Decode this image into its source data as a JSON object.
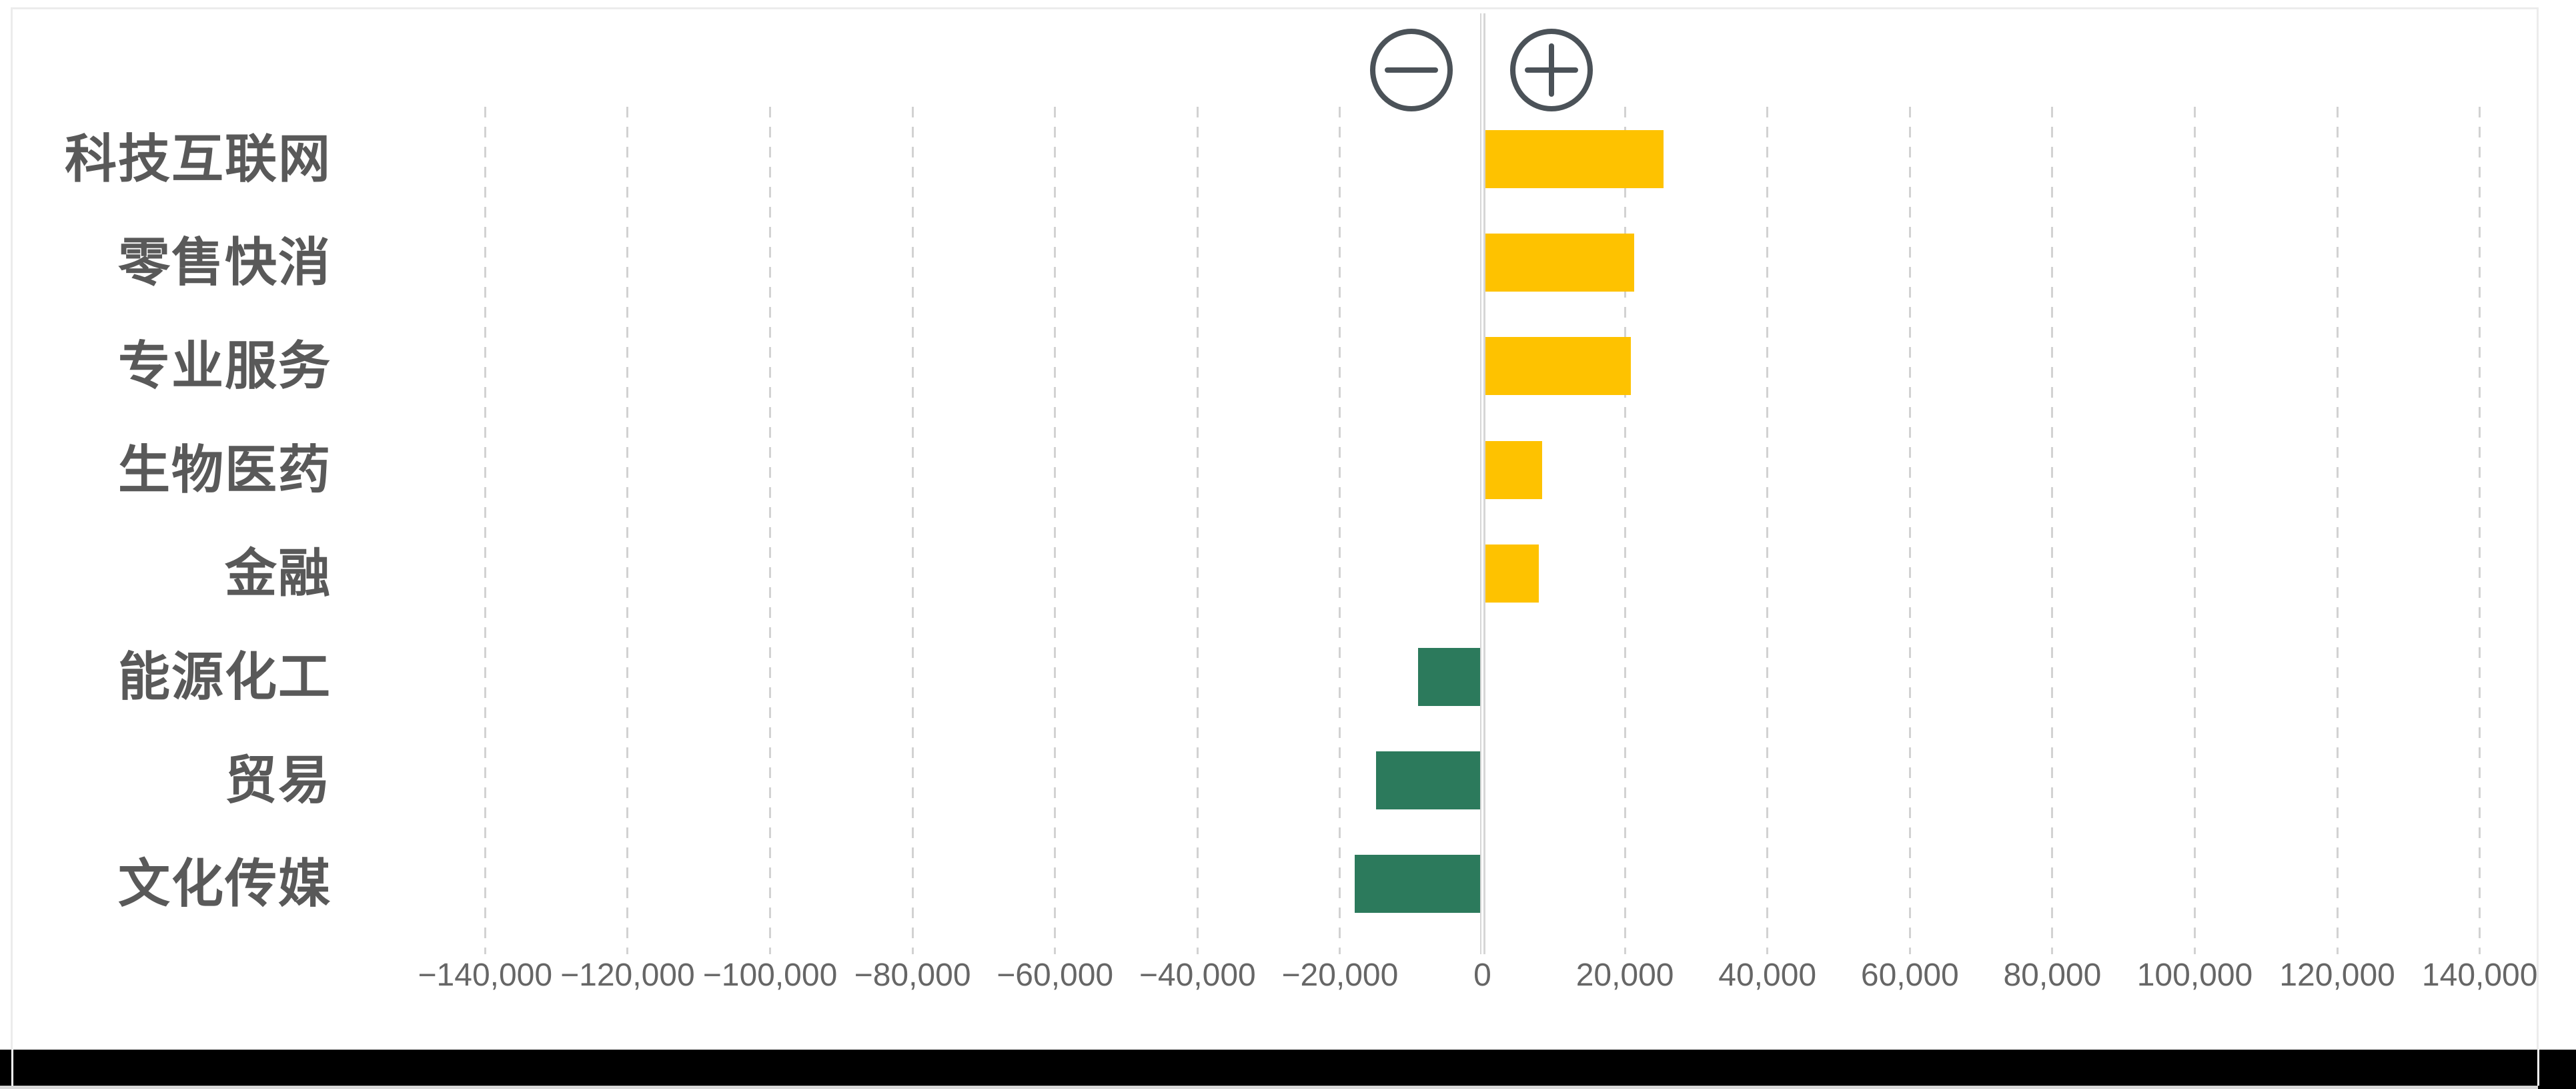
{
  "controls": {
    "zoom_out_icon": "minus-circle-icon",
    "zoom_in_icon": "plus-circle-icon"
  },
  "colors": {
    "background": "#ffffff",
    "card_border": "#ececec",
    "gridline": "#d2d2d2",
    "zero_line": "#d6d6d6",
    "positive_bar": "#FEC200",
    "negative_bar": "#2C7A5C",
    "tick_text": "#666666",
    "category_text": "#595959",
    "icon_stroke": "#4b5258",
    "bottom_bar": "#000000",
    "bottom_strip": "#d9d9d9"
  },
  "chart_data": {
    "type": "bar",
    "orientation": "horizontal",
    "title": "",
    "categories": [
      "科技互联网",
      "零售快消",
      "专业服务",
      "生物医药",
      "金融",
      "能源化工",
      "贸易",
      "文化传媒"
    ],
    "values": [
      25000,
      20900,
      20400,
      8000,
      7500,
      -8700,
      -14600,
      -17600
    ],
    "positive_color": "#FEC200",
    "negative_color": "#2C7A5C",
    "xlim": [
      -140000,
      140000
    ],
    "x_ticks": [
      -140000,
      -120000,
      -100000,
      -80000,
      -60000,
      -40000,
      -20000,
      0,
      20000,
      40000,
      60000,
      80000,
      100000,
      120000,
      140000
    ],
    "x_tick_labels": [
      "−140,000",
      "−120,000",
      "−100,000",
      "−80,000",
      "−60,000",
      "−40,000",
      "−20,000",
      "0",
      "20,000",
      "40,000",
      "60,000",
      "80,000",
      "100,000",
      "120,000",
      "140,000"
    ],
    "grid": "vertical-dashed",
    "legend": "none"
  }
}
